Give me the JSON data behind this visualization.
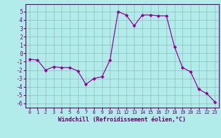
{
  "x": [
    0,
    1,
    2,
    3,
    4,
    5,
    6,
    7,
    8,
    9,
    10,
    11,
    12,
    13,
    14,
    15,
    16,
    17,
    18,
    19,
    20,
    21,
    22,
    23
  ],
  "y": [
    -0.7,
    -0.8,
    -2.0,
    -1.6,
    -1.7,
    -1.7,
    -2.1,
    -3.7,
    -3.0,
    -2.8,
    -0.8,
    5.0,
    4.6,
    3.3,
    4.6,
    4.6,
    4.5,
    4.5,
    0.8,
    -1.7,
    -2.2,
    -4.3,
    -4.8,
    -5.8
  ],
  "line_color": "#990099",
  "marker": "D",
  "marker_size": 2.2,
  "bg_color": "#b2ecea",
  "grid_color": "#8fbcbc",
  "xlabel": "Windchill (Refroidissement éolien,°C)",
  "xlabel_color": "#660066",
  "tick_color": "#660066",
  "ylim": [
    -6.5,
    5.9
  ],
  "yticks": [
    -6,
    -5,
    -4,
    -3,
    -2,
    -1,
    0,
    1,
    2,
    3,
    4,
    5
  ],
  "xticks": [
    0,
    1,
    2,
    3,
    4,
    5,
    6,
    7,
    8,
    9,
    10,
    11,
    12,
    13,
    14,
    15,
    16,
    17,
    18,
    19,
    20,
    21,
    22,
    23
  ],
  "spine_color": "#660066"
}
